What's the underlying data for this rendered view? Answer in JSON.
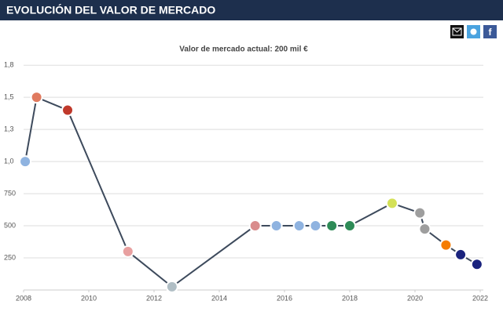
{
  "chart_data": {
    "type": "line",
    "title": "EVOLUCIÓN DEL VALOR DE MERCADO",
    "subtitle": "Valor de mercado actual: 200 mil €",
    "x": [
      2008.05,
      2008.4,
      2009.35,
      2011.2,
      2012.55,
      2015.1,
      2015.75,
      2016.45,
      2016.95,
      2017.45,
      2018.0,
      2019.3,
      2020.15,
      2020.3,
      2020.95,
      2021.4,
      2021.9
    ],
    "values": [
      1000,
      1500,
      1400,
      300,
      25,
      500,
      500,
      500,
      500,
      500,
      500,
      675,
      600,
      475,
      350,
      275,
      200
    ],
    "marker_colors": [
      "#8fb3e0",
      "#e07a5f",
      "#c0392b",
      "#e8a0a0",
      "#b0bec5",
      "#d98c8c",
      "#8fb3e0",
      "#8fb3e0",
      "#8fb3e0",
      "#2e8b57",
      "#2e8b57",
      "#d4e157",
      "#9e9e9e",
      "#9e9e9e",
      "#f57c00",
      "#1a237e",
      "#1a237e"
    ],
    "color": "#3d4a5c",
    "xlim": [
      2008,
      2022
    ],
    "xticks": [
      2008,
      2010,
      2012,
      2014,
      2016,
      2018,
      2020,
      2022
    ],
    "ylim": [
      0,
      1800
    ],
    "yticks": [
      250,
      500,
      750,
      {
        "value": 1000,
        "label": "1,0"
      },
      {
        "value": 1250,
        "label": "1,3"
      },
      {
        "value": 1500,
        "label": "1,5"
      },
      {
        "value": 1750,
        "label": "1,8"
      }
    ],
    "grid": true
  }
}
